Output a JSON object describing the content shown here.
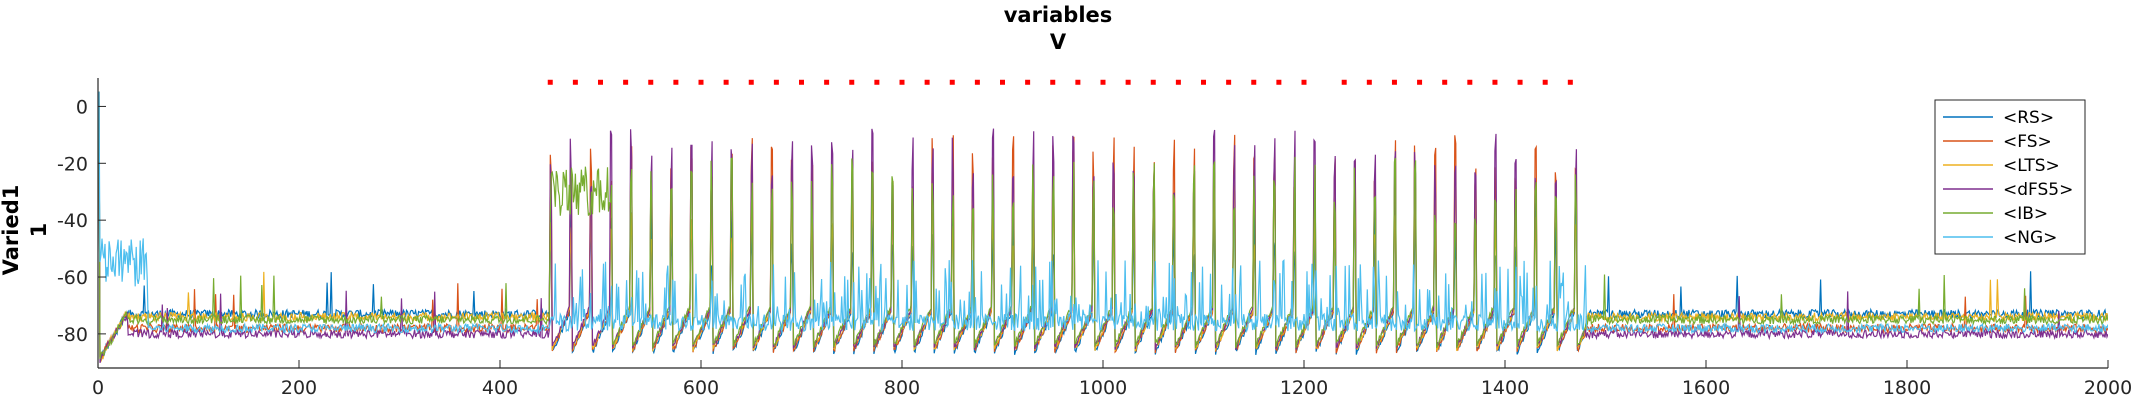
{
  "chart_data": {
    "type": "line",
    "title": [
      "variables",
      "V"
    ],
    "ylabel": [
      "Varied1",
      "1"
    ],
    "xlabel": "",
    "xlim": [
      0,
      2000
    ],
    "ylim": [
      -92,
      10
    ],
    "xticks": [
      0,
      200,
      400,
      600,
      800,
      1000,
      1200,
      1400,
      1600,
      1800,
      2000
    ],
    "yticks": [
      0,
      -20,
      -40,
      -60,
      -80
    ],
    "grid": false,
    "legend": {
      "placement": "top-right"
    },
    "series": [
      {
        "name": "<RS>",
        "color": "#0072BD",
        "baseline": -73,
        "spike_peak": -45
      },
      {
        "name": "<FS>",
        "color": "#D95319",
        "baseline": -78,
        "spike_peak": -22
      },
      {
        "name": "<LTS>",
        "color": "#EDB120",
        "baseline": -74,
        "spike_peak": -40
      },
      {
        "name": "<dFS5>",
        "color": "#7E2F8E",
        "baseline": -80,
        "spike_peak": -20
      },
      {
        "name": "<IB>",
        "color": "#77AC30",
        "baseline": -75,
        "spike_peak": -30
      },
      {
        "name": "<NG>",
        "color": "#4DBEEE",
        "baseline": -78,
        "spike_peak": -60
      }
    ],
    "oscillation": {
      "x_start": 450,
      "x_end": 1480,
      "spike_interval": 20
    },
    "ib_burst": {
      "x_start": 450,
      "x_end": 510,
      "level": -30
    },
    "markers": {
      "color": "#FF0000",
      "y": 8.5,
      "x": [
        450,
        475,
        500,
        525,
        550,
        575,
        600,
        625,
        650,
        675,
        700,
        725,
        750,
        775,
        800,
        825,
        850,
        875,
        900,
        925,
        950,
        975,
        1000,
        1025,
        1050,
        1075,
        1100,
        1125,
        1150,
        1175,
        1200,
        1240,
        1265,
        1290,
        1315,
        1340,
        1365,
        1390,
        1415,
        1440,
        1465
      ]
    }
  }
}
